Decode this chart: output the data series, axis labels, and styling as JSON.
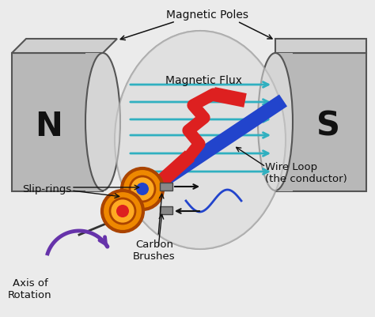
{
  "labels": {
    "magnetic_poles": "Magnetic Poles",
    "magnetic_flux": "Magnetic Flux",
    "slip_rings": "Slip-rings",
    "carbon_brushes": "Carbon\nBrushes",
    "wire_loop": "Wire Loop\n(the conductor)",
    "axis_of_rotation": "Axis of\nRotation",
    "N": "N",
    "S": "S"
  },
  "colors": {
    "bg": "#ebebeb",
    "magnet_body": "#b8b8b8",
    "magnet_top": "#d0d0d0",
    "magnet_face": "#cccccc",
    "magnet_edge": "#555555",
    "gap_fill": "#d8d8d8",
    "gap_edge": "#999999",
    "flux_arrow": "#30b0c0",
    "red_wire": "#dd2020",
    "blue_wire": "#2244cc",
    "slip_ring_outer": "#ee8800",
    "slip_ring_inner": "#ffcc44",
    "slip_ring_edge": "#aa4400",
    "brush": "#888888",
    "rotation_arrow": "#6633aa",
    "sine_wave": "#2244cc",
    "text": "#111111",
    "arrow": "#111111"
  }
}
